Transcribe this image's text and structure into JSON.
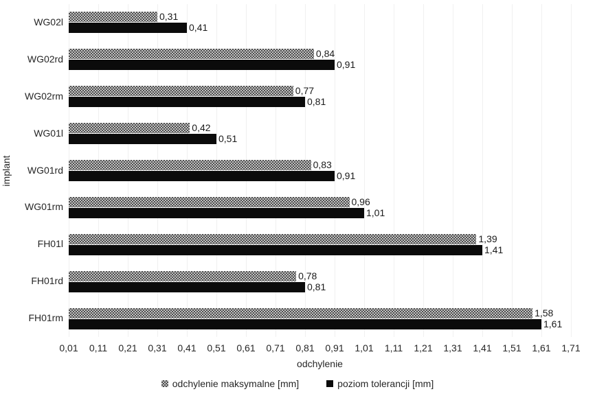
{
  "chart_data": {
    "type": "bar",
    "orientation": "horizontal",
    "title": "",
    "xlabel": "odchylenie",
    "ylabel": "implant",
    "xlim": [
      0.01,
      1.71
    ],
    "xtick_labels": [
      "0,01",
      "0,11",
      "0,21",
      "0,31",
      "0,41",
      "0,51",
      "0,61",
      "0,71",
      "0,81",
      "0,91",
      "1,01",
      "1,11",
      "1,21",
      "1,31",
      "1,41",
      "1,51",
      "1,61",
      "1,71"
    ],
    "grid": true,
    "legend_position": "bottom",
    "categories": [
      "WG02l",
      "WG02rd",
      "WG02rm",
      "WG01l",
      "WG01rd",
      "WG01rm",
      "FH01l",
      "FH01rd",
      "FH01rm"
    ],
    "series": [
      {
        "name": "odchylenie maksymalne [mm]",
        "style": "checker",
        "values": [
          0.31,
          0.84,
          0.77,
          0.42,
          0.83,
          0.96,
          1.39,
          0.78,
          1.58
        ],
        "labels": [
          "0,31",
          "0,84",
          "0,77",
          "0,42",
          "0,83",
          "0,96",
          "1,39",
          "0,78",
          "1,58"
        ]
      },
      {
        "name": "poziom tolerancji [mm]",
        "style": "solid",
        "values": [
          0.41,
          0.91,
          0.81,
          0.51,
          0.91,
          1.01,
          1.41,
          0.81,
          1.61
        ],
        "labels": [
          "0,41",
          "0,91",
          "0,81",
          "0,51",
          "0,91",
          "1,01",
          "1,41",
          "0,81",
          "1,61"
        ]
      }
    ]
  },
  "colors": {
    "bar_black": "#0b0b0b",
    "checker_dark": "#4d4d4d",
    "checker_light": "#c3c3c3",
    "gridline": "#f0f0f0",
    "text": "#262626",
    "background": "#ffffff"
  }
}
